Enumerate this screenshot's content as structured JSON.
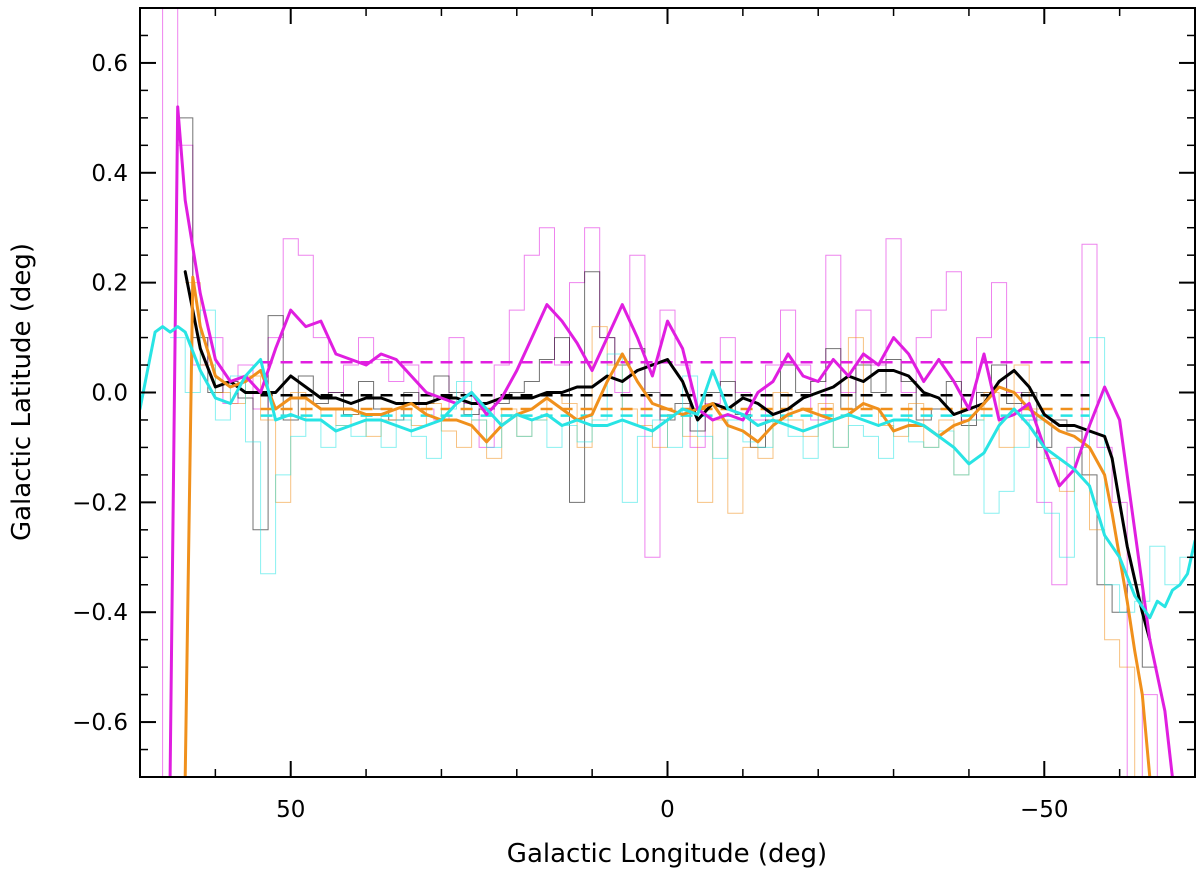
{
  "chart_data": {
    "type": "line",
    "title": "",
    "xlabel": "Galactic Longitude (deg)",
    "ylabel": "Galactic Latitude (deg)",
    "xlim": [
      70,
      -70
    ],
    "ylim": [
      -0.7,
      0.7
    ],
    "x_reversed": true,
    "grid": false,
    "legend": "none",
    "x_ticks": [
      50,
      0,
      -50
    ],
    "x_tick_labels": [
      "50",
      "0",
      "−50"
    ],
    "y_ticks": [
      0.6,
      0.4,
      0.2,
      0.0,
      -0.2,
      -0.4,
      -0.6
    ],
    "y_tick_labels": [
      "0.6",
      "0.4",
      "0.2",
      "0.0",
      "−0.2",
      "−0.4",
      "−0.6"
    ],
    "series": [
      {
        "color": "#000000",
        "style": "solid",
        "x": [
          64,
          62,
          60,
          58,
          56,
          54,
          52,
          50,
          48,
          46,
          44,
          42,
          40,
          38,
          36,
          34,
          32,
          30,
          28,
          26,
          24,
          22,
          20,
          18,
          16,
          14,
          12,
          10,
          8,
          6,
          4,
          2,
          0,
          -2,
          -4,
          -6,
          -8,
          -10,
          -12,
          -14,
          -16,
          -18,
          -20,
          -22,
          -24,
          -26,
          -28,
          -30,
          -32,
          -34,
          -36,
          -38,
          -40,
          -42,
          -44,
          -46,
          -48,
          -50,
          -52,
          -54,
          -56,
          -58,
          -59,
          -60,
          -61,
          -62,
          -63,
          -64
        ],
        "y": [
          0.22,
          0.08,
          0.01,
          0.02,
          0.0,
          0.0,
          0.0,
          0.03,
          0.01,
          -0.01,
          -0.01,
          -0.02,
          -0.01,
          -0.01,
          -0.02,
          -0.02,
          -0.02,
          -0.01,
          -0.01,
          -0.02,
          -0.02,
          -0.01,
          -0.01,
          -0.01,
          0.0,
          0.0,
          0.01,
          0.01,
          0.03,
          0.02,
          0.04,
          0.05,
          0.06,
          0.02,
          -0.05,
          -0.02,
          -0.03,
          -0.01,
          -0.02,
          -0.04,
          -0.03,
          -0.01,
          0.0,
          0.01,
          0.03,
          0.02,
          0.04,
          0.04,
          0.03,
          0.0,
          -0.01,
          -0.04,
          -0.03,
          -0.02,
          0.02,
          0.04,
          0.01,
          -0.04,
          -0.06,
          -0.06,
          -0.07,
          -0.08,
          -0.12,
          -0.2,
          -0.28,
          -0.34,
          -0.4,
          -0.45
        ]
      },
      {
        "color": "#f0901c",
        "style": "solid",
        "x": [
          64,
          63,
          62,
          60,
          58,
          56,
          54,
          52,
          50,
          48,
          46,
          44,
          42,
          40,
          38,
          36,
          34,
          32,
          30,
          28,
          26,
          24,
          22,
          20,
          18,
          16,
          14,
          12,
          10,
          8,
          6,
          4,
          2,
          0,
          -2,
          -4,
          -6,
          -8,
          -10,
          -12,
          -14,
          -16,
          -18,
          -20,
          -22,
          -24,
          -26,
          -28,
          -30,
          -32,
          -34,
          -36,
          -38,
          -40,
          -42,
          -44,
          -46,
          -48,
          -50,
          -52,
          -54,
          -56,
          -58,
          -59,
          -60,
          -61,
          -62,
          -63,
          -64
        ],
        "y": [
          -0.7,
          0.21,
          0.12,
          0.03,
          0.01,
          0.02,
          0.04,
          -0.03,
          -0.01,
          -0.01,
          -0.03,
          -0.03,
          -0.03,
          -0.04,
          -0.04,
          -0.03,
          -0.02,
          -0.04,
          -0.05,
          -0.05,
          -0.06,
          -0.09,
          -0.06,
          -0.04,
          -0.03,
          -0.01,
          -0.03,
          -0.05,
          -0.04,
          0.02,
          0.07,
          0.02,
          -0.02,
          -0.03,
          -0.04,
          -0.03,
          -0.02,
          -0.06,
          -0.07,
          -0.09,
          -0.06,
          -0.04,
          -0.03,
          -0.04,
          -0.05,
          -0.04,
          -0.02,
          -0.03,
          -0.07,
          -0.06,
          -0.06,
          -0.08,
          -0.06,
          -0.05,
          -0.02,
          0.01,
          0.0,
          -0.03,
          -0.05,
          -0.07,
          -0.08,
          -0.1,
          -0.15,
          -0.22,
          -0.3,
          -0.38,
          -0.47,
          -0.55,
          -0.7
        ]
      },
      {
        "color": "#e01ee0",
        "style": "solid",
        "x": [
          66,
          65,
          64,
          62,
          60,
          58,
          56,
          54,
          52,
          50,
          48,
          46,
          44,
          42,
          40,
          38,
          36,
          34,
          32,
          30,
          28,
          26,
          24,
          22,
          20,
          18,
          16,
          14,
          12,
          10,
          8,
          6,
          4,
          2,
          0,
          -2,
          -4,
          -6,
          -8,
          -10,
          -12,
          -14,
          -16,
          -18,
          -20,
          -22,
          -24,
          -26,
          -28,
          -30,
          -32,
          -34,
          -36,
          -38,
          -40,
          -42,
          -44,
          -46,
          -48,
          -50,
          -52,
          -54,
          -56,
          -58,
          -60,
          -62,
          -64,
          -66,
          -67
        ],
        "y": [
          -0.7,
          0.52,
          0.35,
          0.18,
          0.06,
          0.02,
          0.03,
          0.0,
          0.08,
          0.15,
          0.12,
          0.13,
          0.07,
          0.06,
          0.05,
          0.07,
          0.06,
          0.03,
          0.0,
          -0.01,
          -0.02,
          0.0,
          -0.04,
          -0.01,
          0.04,
          0.1,
          0.16,
          0.13,
          0.09,
          0.04,
          0.1,
          0.16,
          0.1,
          0.03,
          0.13,
          0.08,
          -0.03,
          -0.05,
          -0.04,
          -0.05,
          0.0,
          0.02,
          0.07,
          0.03,
          0.02,
          0.06,
          0.03,
          0.07,
          0.05,
          0.1,
          0.07,
          0.02,
          0.06,
          0.02,
          -0.03,
          0.07,
          -0.05,
          -0.04,
          -0.02,
          -0.1,
          -0.17,
          -0.14,
          -0.06,
          0.01,
          -0.05,
          -0.25,
          -0.45,
          -0.58,
          -0.7
        ]
      },
      {
        "color": "#28e4e4",
        "style": "solid",
        "x": [
          70,
          69,
          68,
          67,
          66,
          65,
          64,
          62,
          60,
          58,
          56,
          54,
          52,
          50,
          48,
          46,
          44,
          42,
          40,
          38,
          36,
          34,
          32,
          30,
          28,
          26,
          24,
          22,
          20,
          18,
          16,
          14,
          12,
          10,
          8,
          6,
          4,
          2,
          0,
          -2,
          -4,
          -6,
          -8,
          -10,
          -12,
          -14,
          -16,
          -18,
          -20,
          -22,
          -24,
          -26,
          -28,
          -30,
          -32,
          -34,
          -36,
          -38,
          -40,
          -42,
          -44,
          -46,
          -48,
          -50,
          -52,
          -54,
          -56,
          -58,
          -60,
          -62,
          -64,
          -65,
          -66,
          -67,
          -68,
          -69,
          -70
        ],
        "y": [
          -0.03,
          0.04,
          0.11,
          0.12,
          0.11,
          0.12,
          0.11,
          0.04,
          -0.01,
          -0.02,
          0.03,
          0.06,
          -0.05,
          -0.04,
          -0.05,
          -0.05,
          -0.07,
          -0.06,
          -0.05,
          -0.05,
          -0.06,
          -0.07,
          -0.06,
          -0.05,
          -0.02,
          0.0,
          -0.03,
          -0.06,
          -0.04,
          -0.05,
          -0.04,
          -0.06,
          -0.05,
          -0.06,
          -0.06,
          -0.05,
          -0.06,
          -0.07,
          -0.05,
          -0.03,
          -0.04,
          0.04,
          -0.03,
          -0.04,
          -0.06,
          -0.05,
          -0.06,
          -0.07,
          -0.06,
          -0.05,
          -0.04,
          -0.05,
          -0.06,
          -0.05,
          -0.05,
          -0.06,
          -0.08,
          -0.1,
          -0.13,
          -0.11,
          -0.06,
          -0.03,
          -0.06,
          -0.1,
          -0.12,
          -0.14,
          -0.17,
          -0.26,
          -0.3,
          -0.37,
          -0.41,
          -0.38,
          -0.39,
          -0.36,
          -0.35,
          -0.33,
          -0.27
        ]
      },
      {
        "color": "#000000",
        "style": "dashed",
        "x": [
          54,
          -56
        ],
        "y": [
          -0.005,
          -0.005
        ]
      },
      {
        "color": "#e01ee0",
        "style": "dashed",
        "x": [
          54,
          -56
        ],
        "y": [
          0.055,
          0.055
        ]
      },
      {
        "color": "#f0901c",
        "style": "dashed",
        "x": [
          54,
          -56
        ],
        "y": [
          -0.03,
          -0.03
        ]
      },
      {
        "color": "#28e4e4",
        "style": "dashed",
        "x": [
          54,
          -56
        ],
        "y": [
          -0.042,
          -0.042
        ]
      },
      {
        "color": "#e01ee0",
        "style": "histogram",
        "x": [
          68,
          66,
          64,
          62,
          60,
          58,
          56,
          54,
          52,
          50,
          48,
          46,
          44,
          42,
          40,
          38,
          36,
          34,
          32,
          30,
          28,
          26,
          24,
          22,
          20,
          18,
          16,
          14,
          12,
          10,
          8,
          6,
          4,
          2,
          0,
          -2,
          -4,
          -6,
          -8,
          -10,
          -12,
          -14,
          -16,
          -18,
          -20,
          -22,
          -24,
          -26,
          -28,
          -30,
          -32,
          -34,
          -36,
          -38,
          -40,
          -42,
          -44,
          -46,
          -48,
          -50,
          -52,
          -54,
          -56,
          -58,
          -60,
          -62,
          -64,
          -66
        ],
        "y": [
          -0.7,
          0.7,
          0.45,
          0.05,
          0.1,
          -0.02,
          0.05,
          -0.03,
          0.1,
          0.28,
          0.25,
          0.1,
          0.0,
          0.05,
          0.1,
          0.06,
          0.02,
          0.05,
          -0.03,
          -0.05,
          0.1,
          -0.02,
          -0.1,
          0.05,
          0.15,
          0.25,
          0.3,
          0.05,
          0.2,
          0.3,
          0.1,
          0.0,
          0.25,
          -0.3,
          0.15,
          0.05,
          -0.1,
          -0.02,
          0.1,
          0.0,
          -0.05,
          0.05,
          0.15,
          0.05,
          -0.05,
          0.25,
          0.0,
          0.15,
          0.05,
          0.28,
          0.0,
          0.1,
          0.15,
          0.22,
          -0.05,
          0.1,
          0.2,
          0.0,
          -0.05,
          -0.2,
          -0.35,
          -0.1,
          0.27,
          -0.1,
          -0.2,
          -0.7,
          -0.55,
          -0.7
        ]
      },
      {
        "color": "#000000",
        "style": "histogram",
        "x": [
          64,
          62,
          60,
          58,
          56,
          54,
          52,
          50,
          48,
          46,
          44,
          42,
          40,
          38,
          36,
          34,
          32,
          30,
          28,
          26,
          24,
          22,
          20,
          18,
          16,
          14,
          12,
          10,
          8,
          6,
          4,
          2,
          0,
          -2,
          -4,
          -6,
          -8,
          -10,
          -12,
          -14,
          -16,
          -18,
          -20,
          -22,
          -24,
          -26,
          -28,
          -30,
          -32,
          -34,
          -36,
          -38,
          -40,
          -42,
          -44,
          -46,
          -48,
          -50,
          -52,
          -54,
          -56,
          -58,
          -60,
          -62,
          -64
        ],
        "y": [
          0.5,
          0.1,
          0.0,
          0.02,
          -0.01,
          -0.25,
          0.14,
          -0.05,
          0.03,
          -0.02,
          0.0,
          -0.04,
          0.02,
          -0.03,
          -0.05,
          0.0,
          -0.02,
          0.03,
          0.0,
          -0.04,
          -0.03,
          -0.02,
          0.0,
          0.02,
          0.06,
          0.1,
          -0.2,
          0.22,
          0.1,
          0.05,
          0.08,
          0.0,
          -0.05,
          -0.02,
          -0.07,
          0.0,
          0.02,
          -0.04,
          -0.1,
          -0.05,
          0.05,
          0.0,
          0.02,
          0.08,
          -0.03,
          0.05,
          0.0,
          0.06,
          0.02,
          -0.05,
          -0.03,
          0.02,
          -0.06,
          0.0,
          0.05,
          -0.02,
          0.0,
          -0.1,
          -0.05,
          -0.07,
          -0.15,
          -0.35,
          -0.4,
          -0.35,
          -0.5
        ]
      },
      {
        "color": "#f0901c",
        "style": "histogram",
        "x": [
          63,
          61,
          59,
          57,
          55,
          53,
          51,
          49,
          47,
          45,
          43,
          41,
          39,
          37,
          35,
          33,
          31,
          29,
          27,
          25,
          23,
          21,
          19,
          17,
          15,
          13,
          11,
          9,
          7,
          5,
          3,
          1,
          -1,
          -3,
          -5,
          -7,
          -9,
          -11,
          -13,
          -15,
          -17,
          -19,
          -21,
          -23,
          -25,
          -27,
          -29,
          -31,
          -33,
          -35,
          -37,
          -39,
          -41,
          -43,
          -45,
          -47,
          -49,
          -51,
          -53,
          -55,
          -57,
          -59,
          -61,
          -63
        ],
        "y": [
          0.2,
          0.05,
          0.0,
          -0.02,
          0.03,
          -0.05,
          -0.2,
          0.0,
          -0.05,
          -0.03,
          -0.06,
          -0.04,
          -0.08,
          -0.05,
          -0.03,
          -0.06,
          -0.02,
          -0.07,
          -0.1,
          -0.05,
          -0.12,
          -0.03,
          -0.08,
          -0.05,
          0.0,
          -0.02,
          -0.1,
          0.12,
          0.05,
          -0.03,
          -0.06,
          -0.1,
          -0.04,
          -0.08,
          -0.2,
          -0.05,
          -0.22,
          -0.1,
          -0.12,
          0.0,
          -0.05,
          -0.08,
          -0.02,
          -0.1,
          0.1,
          -0.03,
          -0.06,
          -0.08,
          -0.02,
          -0.1,
          -0.05,
          -0.15,
          -0.05,
          0.0,
          -0.1,
          0.05,
          -0.03,
          -0.12,
          -0.18,
          -0.1,
          -0.25,
          -0.45,
          -0.5,
          -0.7
        ]
      },
      {
        "color": "#28e4e4",
        "style": "histogram",
        "x": [
          65,
          63,
          61,
          59,
          57,
          55,
          53,
          51,
          49,
          47,
          45,
          43,
          41,
          39,
          37,
          35,
          33,
          31,
          29,
          27,
          25,
          23,
          21,
          19,
          17,
          15,
          13,
          11,
          9,
          7,
          5,
          3,
          1,
          -1,
          -3,
          -5,
          -7,
          -9,
          -11,
          -13,
          -15,
          -17,
          -19,
          -21,
          -23,
          -25,
          -27,
          -29,
          -31,
          -33,
          -35,
          -37,
          -39,
          -41,
          -43,
          -45,
          -47,
          -49,
          -51,
          -53,
          -55,
          -57,
          -59,
          -61,
          -63,
          -65,
          -67,
          -69
        ],
        "y": [
          0.1,
          0.0,
          0.15,
          -0.05,
          0.03,
          -0.09,
          -0.33,
          -0.15,
          -0.08,
          -0.05,
          -0.1,
          -0.06,
          -0.08,
          -0.04,
          -0.1,
          -0.05,
          -0.08,
          -0.12,
          -0.03,
          0.02,
          -0.05,
          -0.1,
          -0.04,
          -0.08,
          -0.05,
          -0.1,
          -0.06,
          -0.09,
          -0.05,
          0.07,
          -0.2,
          -0.08,
          -0.05,
          -0.1,
          0.03,
          -0.08,
          -0.12,
          -0.05,
          -0.09,
          -0.1,
          -0.05,
          -0.08,
          -0.12,
          -0.04,
          -0.1,
          -0.06,
          -0.08,
          -0.12,
          -0.05,
          -0.09,
          -0.1,
          -0.07,
          -0.15,
          -0.05,
          -0.22,
          -0.18,
          -0.1,
          -0.05,
          -0.22,
          -0.3,
          -0.1,
          0.1,
          -0.35,
          -0.4,
          -0.38,
          -0.28,
          -0.35,
          -0.3
        ]
      }
    ]
  }
}
